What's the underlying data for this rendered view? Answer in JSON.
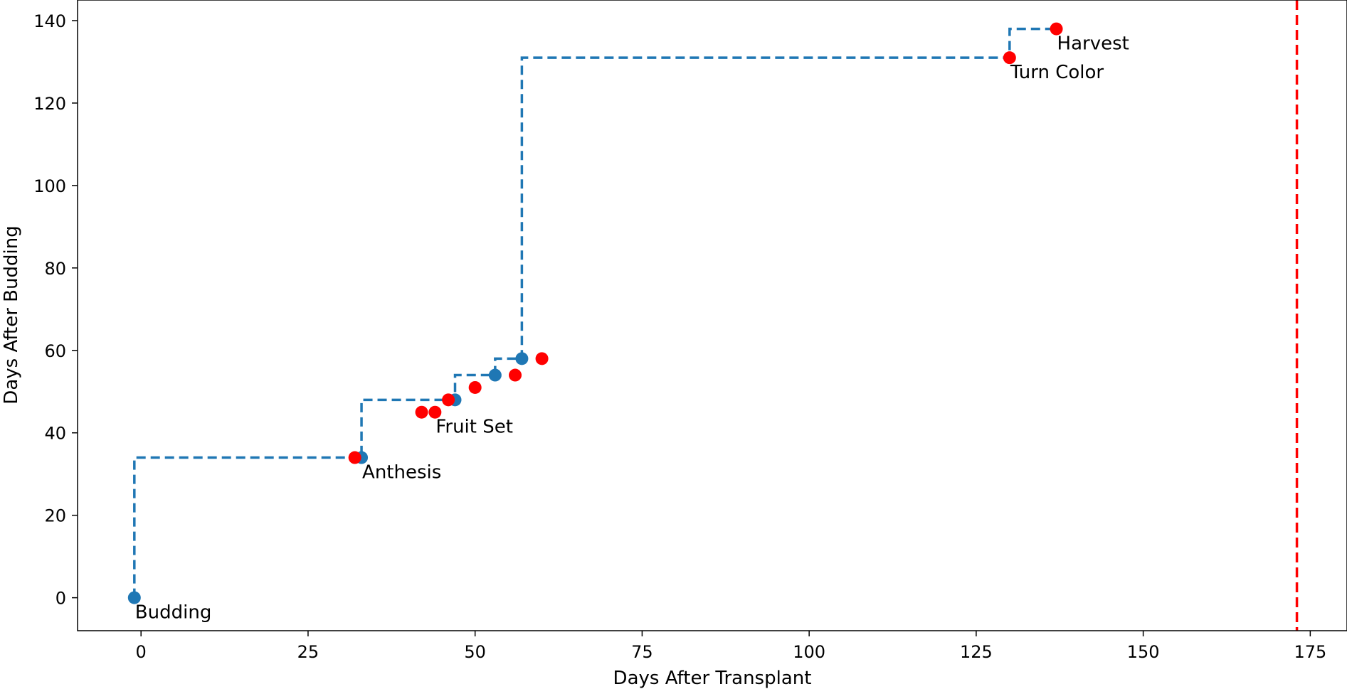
{
  "chart_data": {
    "type": "scatter",
    "xlabel": "Days After Transplant",
    "ylabel": "Days After Budding",
    "xlim": [
      -9.5,
      180.5
    ],
    "ylim": [
      -8,
      145
    ],
    "xticks": [
      0,
      25,
      50,
      75,
      100,
      125,
      150,
      175
    ],
    "yticks": [
      0,
      20,
      40,
      60,
      80,
      100,
      120,
      140
    ],
    "grid": false,
    "step_series": {
      "color": "#1f77b4",
      "style": "dashed",
      "x": [
        -1,
        33,
        47,
        53,
        57,
        130,
        137
      ],
      "y": [
        0,
        34,
        48,
        54,
        58,
        131,
        138
      ]
    },
    "blue_points": {
      "color": "#1f77b4",
      "x": [
        -1,
        33,
        47,
        53,
        57
      ],
      "y": [
        0,
        34,
        48,
        54,
        58
      ]
    },
    "red_points": {
      "color": "#ff0000",
      "x": [
        32,
        42,
        44,
        46,
        50,
        56,
        60,
        130,
        137
      ],
      "y": [
        34,
        45,
        45,
        48,
        51,
        54,
        58,
        131,
        138
      ]
    },
    "annotations": [
      {
        "text": "Budding",
        "x": -1,
        "y": 0
      },
      {
        "text": "Anthesis",
        "x": 33,
        "y": 34
      },
      {
        "text": "Fruit Set",
        "x": 44,
        "y": 45
      },
      {
        "text": "Turn Color",
        "x": 130,
        "y": 131
      },
      {
        "text": "Harvest",
        "x": 137,
        "y": 138
      }
    ],
    "vline": {
      "x": 173,
      "color": "#ff0000",
      "style": "dashed"
    }
  }
}
